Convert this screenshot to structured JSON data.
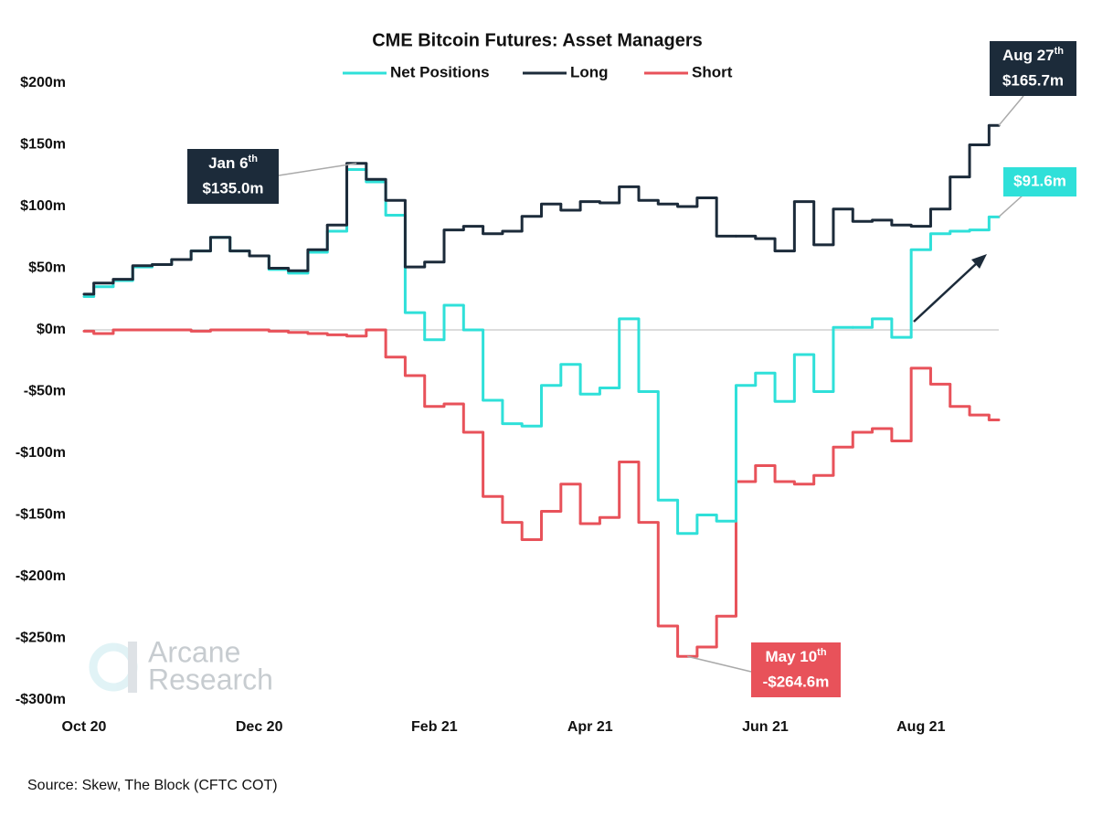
{
  "chart_data": {
    "type": "step",
    "title": "CME Bitcoin Futures: Asset Managers",
    "categories": [
      "Oct 20",
      null,
      null,
      null,
      null,
      null,
      null,
      null,
      null,
      "Dec 20",
      null,
      null,
      null,
      null,
      null,
      null,
      null,
      null,
      "Feb 21",
      null,
      null,
      null,
      null,
      null,
      null,
      null,
      "Apr 21",
      null,
      null,
      null,
      null,
      null,
      null,
      null,
      null,
      "Jun 21",
      null,
      null,
      null,
      null,
      null,
      null,
      null,
      "Aug 21",
      null,
      null,
      null,
      null
    ],
    "series": [
      {
        "name": "Net Positions",
        "color": "#2fe0d9",
        "values": [
          27,
          35,
          40,
          51,
          53,
          57,
          64,
          75,
          64,
          60,
          49,
          46,
          63,
          80,
          130,
          120,
          93,
          14,
          -8,
          20,
          0,
          -57,
          -76,
          -78,
          -45,
          -28,
          -52,
          -47,
          9,
          -50,
          -138,
          -165,
          -150,
          -155,
          -45,
          -35,
          -58,
          -20,
          -50,
          2,
          2,
          9,
          -6,
          65,
          78,
          80,
          81,
          91.6
        ],
        "value_labels": [
          null,
          null,
          null,
          null,
          null,
          null,
          null,
          null,
          null,
          null,
          null,
          null,
          null,
          null,
          null,
          null,
          null,
          null,
          null,
          null,
          null,
          null,
          null,
          null,
          null,
          null,
          null,
          null,
          null,
          null,
          null,
          null,
          null,
          null,
          null,
          null,
          null,
          null,
          null,
          null,
          null,
          null,
          null,
          null,
          null,
          null,
          null,
          "$91.6m"
        ],
        "point_dates": [
          null,
          null,
          null,
          null,
          null,
          null,
          null,
          null,
          null,
          null,
          null,
          null,
          null,
          null,
          null,
          null,
          null,
          null,
          null,
          null,
          null,
          null,
          null,
          null,
          null,
          null,
          null,
          null,
          null,
          null,
          null,
          null,
          null,
          null,
          null,
          null,
          null,
          null,
          null,
          null,
          null,
          null,
          null,
          null,
          null,
          null,
          null,
          null
        ]
      },
      {
        "name": "Long",
        "color": "#1c2b3a",
        "values": [
          29,
          38,
          41,
          52,
          53,
          57,
          64,
          75,
          64,
          60,
          50,
          48,
          65,
          85,
          135.0,
          122,
          105,
          51,
          55,
          81,
          84,
          78,
          80,
          92,
          102,
          97,
          104,
          103,
          116,
          105,
          102,
          100,
          107,
          76,
          76,
          74,
          64,
          104,
          69,
          98,
          88,
          89,
          85,
          84,
          98,
          124,
          150,
          165.7
        ],
        "value_labels": [
          null,
          null,
          null,
          null,
          null,
          null,
          null,
          null,
          null,
          null,
          null,
          null,
          null,
          null,
          "$135.0m",
          null,
          null,
          null,
          null,
          null,
          null,
          null,
          null,
          null,
          null,
          null,
          null,
          null,
          null,
          null,
          null,
          null,
          null,
          null,
          null,
          null,
          null,
          null,
          null,
          null,
          null,
          null,
          null,
          null,
          null,
          null,
          null,
          "$165.7m"
        ],
        "point_dates": [
          null,
          null,
          null,
          null,
          null,
          null,
          null,
          null,
          null,
          null,
          null,
          null,
          null,
          null,
          {
            "text": "Jan 6",
            "sup": "th"
          },
          null,
          null,
          null,
          null,
          null,
          null,
          null,
          null,
          null,
          null,
          null,
          null,
          null,
          null,
          null,
          null,
          null,
          null,
          null,
          null,
          null,
          null,
          null,
          null,
          null,
          null,
          null,
          null,
          null,
          null,
          null,
          null,
          {
            "text": "Aug 27",
            "sup": "th"
          }
        ]
      },
      {
        "name": "Short",
        "color": "#e8525a",
        "values": [
          -1,
          -3,
          0,
          0,
          0,
          0,
          -1,
          0,
          0,
          0,
          -1,
          -2,
          -3,
          -4,
          -5,
          0,
          -22,
          -37,
          -62,
          -60,
          -83,
          -135,
          -156,
          -170,
          -147,
          -125,
          -157,
          -152,
          -107,
          -156,
          -240,
          -264.6,
          -257,
          -232,
          -123,
          -110,
          -123,
          -125,
          -118,
          -95,
          -83,
          -80,
          -90,
          -31,
          -44,
          -62,
          -69,
          -73
        ],
        "value_labels": [
          null,
          null,
          null,
          null,
          null,
          null,
          null,
          null,
          null,
          null,
          null,
          null,
          null,
          null,
          null,
          null,
          null,
          null,
          null,
          null,
          null,
          null,
          null,
          null,
          null,
          null,
          null,
          null,
          null,
          null,
          null,
          "-$264.6m",
          null,
          null,
          null,
          null,
          null,
          null,
          null,
          null,
          null,
          null,
          null,
          null,
          null,
          null,
          null,
          null
        ],
        "point_dates": [
          null,
          null,
          null,
          null,
          null,
          null,
          null,
          null,
          null,
          null,
          null,
          null,
          null,
          null,
          null,
          null,
          null,
          null,
          null,
          null,
          null,
          null,
          null,
          null,
          null,
          null,
          null,
          null,
          null,
          null,
          null,
          {
            "text": "May 10",
            "sup": "th"
          },
          null,
          null,
          null,
          null,
          null,
          null,
          null,
          null,
          null,
          null,
          null,
          null,
          null,
          null,
          null,
          null
        ]
      }
    ],
    "ylim": [
      -300,
      200
    ],
    "yticks": [
      {
        "value": -300,
        "label": "-$300m"
      },
      {
        "value": -250,
        "label": "-$250m"
      },
      {
        "value": -200,
        "label": "-$200m"
      },
      {
        "value": -150,
        "label": "-$150m"
      },
      {
        "value": -100,
        "label": "-$100m"
      },
      {
        "value": -50,
        "label": "-$50m"
      },
      {
        "value": 0,
        "label": "$0m"
      },
      {
        "value": 50,
        "label": "$50m"
      },
      {
        "value": 100,
        "label": "$100m"
      },
      {
        "value": 150,
        "label": "$150m"
      },
      {
        "value": 200,
        "label": "$200m"
      }
    ],
    "grid": false,
    "legend": "top",
    "watermark": [
      "Arcane",
      "Research"
    ],
    "source": "Source: Skew, The Block (CFTC COT)"
  }
}
